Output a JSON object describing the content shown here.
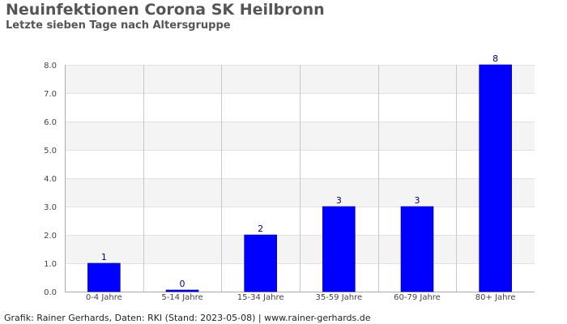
{
  "chart_data": {
    "type": "bar",
    "title": "Neuinfektionen Corona SK Heilbronn",
    "subtitle": "Letzte sieben Tage nach Altersgruppe",
    "xlabel": "",
    "ylabel": "",
    "categories": [
      "0-4 Jahre",
      "5-14 Jahre",
      "15-34 Jahre",
      "35-59 Jahre",
      "60-79 Jahre",
      "80+ Jahre"
    ],
    "values": [
      1,
      0,
      2,
      3,
      3,
      8
    ],
    "data_labels": [
      "1",
      "0",
      "2",
      "3",
      "3",
      "8"
    ],
    "ylim": [
      0,
      8
    ],
    "y_ticks": [
      "0.0",
      "1.0",
      "2.0",
      "3.0",
      "4.0",
      "5.0",
      "6.0",
      "7.0",
      "8.0"
    ],
    "grid": true,
    "legend": "none",
    "colors": {
      "bar": "#0000ff",
      "bar_border": "#000080",
      "data_label": "#000080",
      "band_light": "#f4f4f4",
      "band_white": "#ffffff"
    }
  },
  "footer": "Grafik: Rainer Gerhards, Daten: RKI (Stand: 2023-05-08) | www.rainer-gerhards.de"
}
